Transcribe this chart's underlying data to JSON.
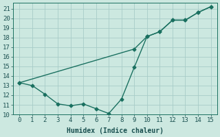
{
  "xlabel": "Humidex (Indice chaleur)",
  "bg_color": "#cce8e0",
  "line_color": "#1a7060",
  "xlim": [
    -0.5,
    15.5
  ],
  "ylim": [
    10,
    21.6
  ],
  "xticks": [
    0,
    1,
    2,
    3,
    4,
    5,
    6,
    7,
    8,
    9,
    10,
    11,
    12,
    13,
    14,
    15
  ],
  "yticks": [
    10,
    11,
    12,
    13,
    14,
    15,
    16,
    17,
    18,
    19,
    20,
    21
  ],
  "series1_x": [
    0,
    1,
    2,
    3,
    4,
    5,
    6,
    7,
    8,
    9,
    10,
    11,
    12,
    13,
    14,
    15
  ],
  "series1_y": [
    13.3,
    13.0,
    12.1,
    11.1,
    10.9,
    11.1,
    10.6,
    10.1,
    11.6,
    14.9,
    18.1,
    18.6,
    19.8,
    19.8,
    20.6,
    21.2
  ],
  "series2_x": [
    0,
    9,
    10,
    11,
    12,
    13,
    14,
    15
  ],
  "series2_y": [
    13.3,
    16.8,
    18.1,
    18.6,
    19.8,
    19.8,
    20.6,
    21.2
  ],
  "grid_color": "#a8ccc8",
  "marker": "D",
  "markersize": 2.5,
  "linewidth": 1.0,
  "font_color": "#1a5050",
  "xlabel_fontsize": 7,
  "tick_fontsize": 6.5
}
